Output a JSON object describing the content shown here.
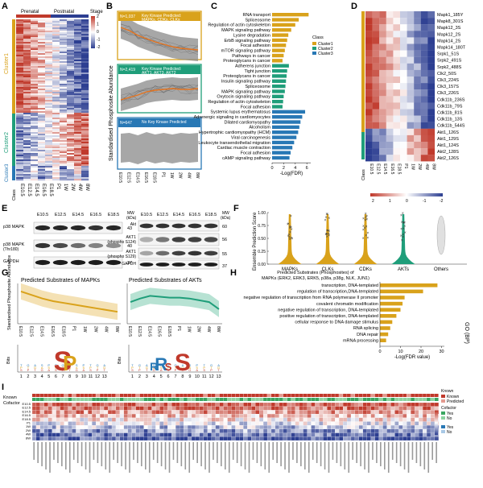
{
  "panels": {
    "a": "A",
    "b": "B",
    "c": "C",
    "d": "D",
    "e": "E",
    "f": "F",
    "g": "G",
    "h": "H",
    "i": "I"
  },
  "stages": [
    "E10.5",
    "E12.5",
    "E14.5",
    "E16.5",
    "E18.5",
    "P1",
    "1W",
    "2W",
    "4W",
    "8W"
  ],
  "panelA": {
    "prenatal": "Prenatal",
    "postnatal": "Postnatal",
    "clusters": [
      "Cluster1",
      "Cluster2",
      "Cluster3"
    ],
    "class_label": "Class",
    "legend_title": "Stage",
    "legend_ticks": [
      "2",
      "1",
      "0",
      "-1",
      "-2"
    ],
    "colors": {
      "cluster1": "#d9a21b",
      "cluster2": "#1f9e7a",
      "cluster3": "#2878b5",
      "prenatal": "#c0392b",
      "postnatal": "#2c3e91"
    }
  },
  "panelB": {
    "ylabel": "Standardised Phosphosite Abundance",
    "boxes": [
      {
        "n": "N=1,037",
        "label1": "Key Kinase Predicted:",
        "label2": "MAPKs, CDKs, CLKs"
      },
      {
        "n": "N=2,419",
        "label1": "Key Kinase Predicted:",
        "label2": "AKT1, AKT3, AKT2"
      },
      {
        "n": "N=647",
        "label1": "No Key Kinase Predicted",
        "label2": ""
      }
    ]
  },
  "panelC": {
    "xlabel": "-Log(FDR)",
    "ticks": [
      "0",
      "2",
      "4",
      "6"
    ],
    "legend_title": "Class",
    "legend": [
      "Cluster1",
      "Cluster2",
      "Cluster3"
    ],
    "bars": [
      {
        "term": "RNA transport",
        "v": 6.3,
        "c": 1
      },
      {
        "term": "Spliceosome",
        "v": 4.6,
        "c": 1
      },
      {
        "term": "Regulation of actin cytoskeleton",
        "v": 4.0,
        "c": 1
      },
      {
        "term": "MAPK signaling pathway",
        "v": 3.3,
        "c": 1
      },
      {
        "term": "Lysine degradation",
        "v": 2.8,
        "c": 1
      },
      {
        "term": "ErbB signaling pathway",
        "v": 2.6,
        "c": 1
      },
      {
        "term": "Focal adhesion",
        "v": 2.4,
        "c": 1
      },
      {
        "term": "mTOR signaling pathway",
        "v": 2.2,
        "c": 1
      },
      {
        "term": "Pathways in cancer",
        "v": 2.0,
        "c": 1
      },
      {
        "term": "Proteoglycans in cancer",
        "v": 1.8,
        "c": 1
      },
      {
        "term": "Adherens junction",
        "v": 2.9,
        "c": 2
      },
      {
        "term": "Tight junction",
        "v": 2.6,
        "c": 2
      },
      {
        "term": "Proteoglycans in cancer",
        "v": 2.5,
        "c": 2
      },
      {
        "term": "Insulin signaling pathway",
        "v": 2.4,
        "c": 2
      },
      {
        "term": "Spliceosome",
        "v": 2.3,
        "c": 2
      },
      {
        "term": "MAPK signaling pathway",
        "v": 2.2,
        "c": 2
      },
      {
        "term": "Oxytocin signaling pathway",
        "v": 2.0,
        "c": 2
      },
      {
        "term": "Regulation of actin cytoskeleton",
        "v": 1.9,
        "c": 2
      },
      {
        "term": "Focal adhesion",
        "v": 1.8,
        "c": 2
      },
      {
        "term": "Systemic lupus erythematosus",
        "v": 5.7,
        "c": 3
      },
      {
        "term": "Adrenergic signaling in cardiomyocytes",
        "v": 5.2,
        "c": 3
      },
      {
        "term": "Dilated cardiomyopathy",
        "v": 4.9,
        "c": 3
      },
      {
        "term": "Alcoholism",
        "v": 4.7,
        "c": 3
      },
      {
        "term": "Hypertrophic cardiomyopathy (HCM)",
        "v": 4.5,
        "c": 3
      },
      {
        "term": "Viral carcinogenesis",
        "v": 4.2,
        "c": 3
      },
      {
        "term": "Leukocyte transendothelial migration",
        "v": 3.8,
        "c": 3
      },
      {
        "term": "Cardiac muscle contraction",
        "v": 3.5,
        "c": 3
      },
      {
        "term": "Focal adhesion",
        "v": 3.2,
        "c": 3
      },
      {
        "term": "cAMP signaling pathway",
        "v": 3.0,
        "c": 3
      }
    ]
  },
  "panelD": {
    "class_label": "Class",
    "legend_ticks": [
      "2",
      "1",
      "0",
      "-1",
      "-2"
    ],
    "rows": [
      "Mapk1_185Y",
      "Mapk8_301S",
      "Mapk12_3S",
      "Mapk12_2S",
      "Mapk14_2S",
      "Mapk14_180T",
      "Srpk1_51S",
      "Srpk2_491S",
      "Srpk2_488S",
      "Clk2_50S",
      "Clk3_224S",
      "Clk3_157S",
      "Clk3_226S",
      "Cdk11b_236S",
      "Cdk11b_79S",
      "Cdk11b_81S",
      "Cdk11b_13S",
      "Cdk11b_544S",
      "Akt1_126S",
      "Akt1_129S",
      "Akt1_124S",
      "Akt2_128S",
      "Akt2_126S"
    ]
  },
  "panelE": {
    "left_stages": [
      "E10.5",
      "E12.5",
      "E14.5",
      "E16.5",
      "E18.5"
    ],
    "right_stages": [
      "E10.5",
      "E12.5",
      "E14.5",
      "E16.5",
      "E18.5"
    ],
    "mw_label": "MW (kDa)",
    "left_rows": [
      {
        "label": "p38 MAPK",
        "mw": "43"
      },
      {
        "label": "p38 MAPK (Thr180)",
        "mw": "40"
      },
      {
        "label": "GAPDH",
        "mw": "37"
      }
    ],
    "right_rows": [
      {
        "label": "Akt",
        "mw": "60"
      },
      {
        "label": "AKT1 (phospho S124)",
        "mw": "56"
      },
      {
        "label": "AKT1 (phospho S129)",
        "mw": "55"
      },
      {
        "label": "GAPDH",
        "mw": "37"
      }
    ]
  },
  "panelF": {
    "ylabel": "Ensemble Prediction Score",
    "yticks": [
      "1.00",
      "0.75",
      "0.50",
      "0.25",
      "0.00"
    ],
    "groups": [
      {
        "name": "MAPKs",
        "color": "#d9a21b"
      },
      {
        "name": "CLKs",
        "color": "#d9a21b"
      },
      {
        "name": "CDKs",
        "color": "#d9a21b"
      },
      {
        "name": "AKTs",
        "color": "#1f9e7a"
      },
      {
        "name": "Others",
        "color": "#bbbbbb"
      }
    ]
  },
  "panelG": {
    "title_left": "Predicted Substrates of MAPKs",
    "title_right": "Predicted Substrates of AKTs",
    "ylabel": "Standardised Phosphosite Abundance",
    "bits_label": "Bits",
    "positions": [
      "1",
      "2",
      "3",
      "4",
      "5",
      "6",
      "7",
      "8",
      "9",
      "10",
      "11",
      "12",
      "13"
    ],
    "mapk_trend": [
      1.6,
      1.2,
      0.8,
      0.5,
      0.3,
      0.1,
      -0.1,
      -0.3,
      -0.5,
      -0.7
    ],
    "akt_trend": [
      0.4,
      0.8,
      1.1,
      1.0,
      0.9,
      0.9,
      0.8,
      0.6,
      0.4,
      -0.4
    ],
    "logo_left": [
      "S",
      "P"
    ],
    "logo_right": [
      "R",
      "R",
      "S",
      "S"
    ]
  },
  "panelH": {
    "title": "Predicted Substrates (Phosphosites) of MAPKs (ERK2, ERK3, ERK5, p38a, p38g, NLK, JUN1)",
    "xlabel": "-Log(FDR value)",
    "ylabel": "GO (BP)",
    "ticks": [
      "0",
      "10",
      "20",
      "30"
    ],
    "bars": [
      {
        "term": "transcription, DNA-templated",
        "v": 28
      },
      {
        "term": "regulation of transcription,DNA-templated",
        "v": 21
      },
      {
        "term": "negative regulation of transcription from RNA polymerase II promoter",
        "v": 12
      },
      {
        "term": "covalent chromatin modification",
        "v": 11
      },
      {
        "term": "negative regulation of transcription, DNA-templated",
        "v": 10
      },
      {
        "term": "positive regulation of transcription, DNA-templated",
        "v": 8
      },
      {
        "term": "cellular response to DNA damage stimulus",
        "v": 6
      },
      {
        "term": "RNA splicing",
        "v": 5
      },
      {
        "term": "DNA repair",
        "v": 4
      },
      {
        "term": "mRNA processing",
        "v": 3
      }
    ]
  },
  "panelI": {
    "row_known": "Known",
    "row_cofactor": "Cofactor",
    "legend_known_title": "Known",
    "legend_known": [
      "Known",
      "Predicted"
    ],
    "legend_cofactor_title": "Cofactor",
    "legend_cofactor": [
      "Yes",
      "No"
    ],
    "legend_extra": [
      "Yes",
      "No"
    ],
    "rows": [
      "E10.5",
      "E12.5",
      "E14.5",
      "E16.5",
      "E18.5",
      "P1",
      "1W",
      "2W",
      "4W",
      "8W"
    ]
  }
}
